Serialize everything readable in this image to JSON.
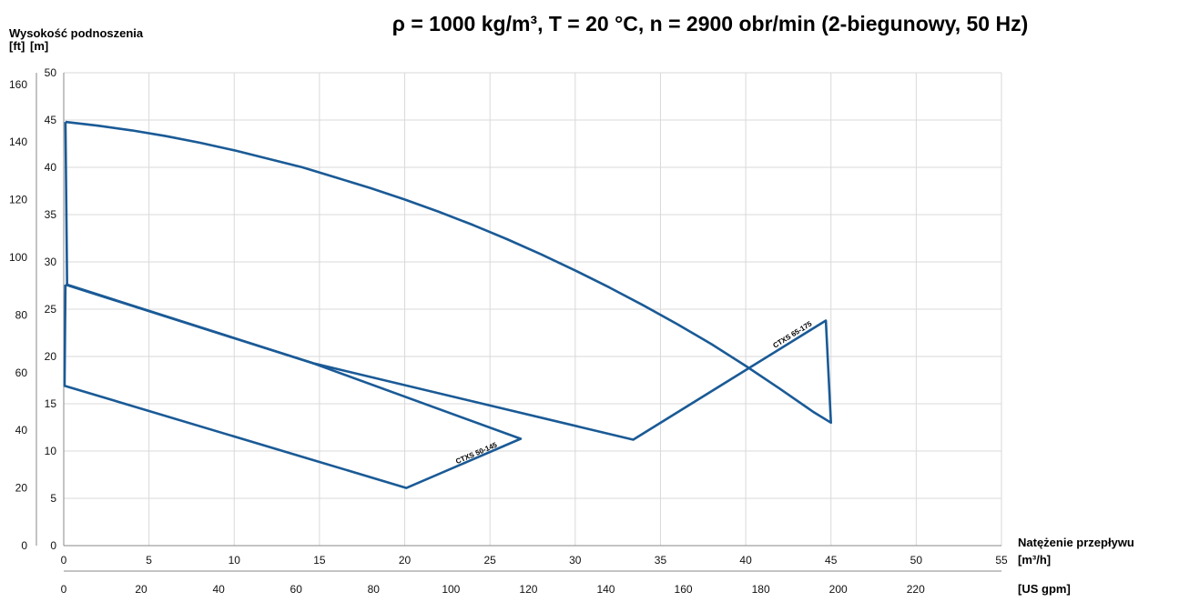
{
  "chart_data": {
    "type": "line",
    "title": "ρ = 1000 kg/m³, T = 20 °C, n = 2900 obr/min (2-biegunowy, 50 Hz)",
    "ylabel": "Wysokość podnoszenia",
    "yunit_ft": "[ft]",
    "yunit_m": "[m]",
    "xlabel": "Natężenie przepływu",
    "xunit_m3h": "[m³/h]",
    "xunit_gpm": "[US gpm]",
    "xlim": [
      0,
      55
    ],
    "ylim": [
      0,
      50
    ],
    "x_ticks_m3h": [
      0,
      5,
      10,
      15,
      20,
      25,
      30,
      35,
      40,
      45,
      50,
      55
    ],
    "x_ticks_gpm": [
      0,
      20,
      40,
      60,
      80,
      100,
      120,
      140,
      160,
      180,
      200,
      220
    ],
    "y_ticks_m": [
      0,
      5,
      10,
      15,
      20,
      25,
      30,
      35,
      40,
      45,
      50
    ],
    "y_ticks_ft": [
      0,
      20,
      40,
      60,
      80,
      100,
      120,
      140,
      160
    ],
    "grid": true,
    "series": [
      {
        "name": "CTXS 65-175",
        "color": "#1a5a96",
        "points": [
          [
            0.1,
            44.8
          ],
          [
            2,
            44.4
          ],
          [
            4,
            43.9
          ],
          [
            6,
            43.3
          ],
          [
            8,
            42.6
          ],
          [
            10,
            41.8
          ],
          [
            12,
            40.9
          ],
          [
            14,
            40.0
          ],
          [
            16,
            38.9
          ],
          [
            18,
            37.8
          ],
          [
            20,
            36.6
          ],
          [
            22,
            35.3
          ],
          [
            24,
            33.9
          ],
          [
            26,
            32.4
          ],
          [
            28,
            30.8
          ],
          [
            30,
            29.1
          ],
          [
            32,
            27.3
          ],
          [
            34,
            25.4
          ],
          [
            36,
            23.4
          ],
          [
            38,
            21.3
          ],
          [
            40,
            19.0
          ],
          [
            42,
            16.6
          ],
          [
            44,
            14.1
          ],
          [
            45,
            13.0
          ],
          [
            44.7,
            23.8
          ],
          [
            33.4,
            11.2
          ],
          [
            14.6,
            19.3
          ],
          [
            0.2,
            27.6
          ],
          [
            0.1,
            44.8
          ]
        ]
      },
      {
        "name": "CTXS 50-145",
        "color": "#1a5a96",
        "points": [
          [
            0.1,
            27.6
          ],
          [
            14.6,
            19.3
          ],
          [
            26.8,
            11.3
          ],
          [
            20.1,
            6.1
          ],
          [
            0.05,
            16.9
          ],
          [
            0.1,
            27.6
          ]
        ]
      }
    ]
  }
}
